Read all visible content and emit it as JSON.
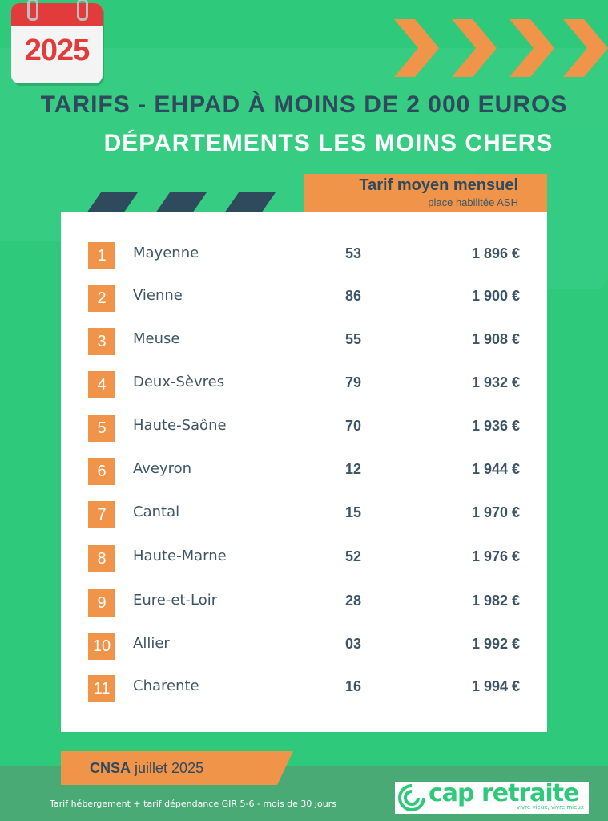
{
  "calendar": {
    "year": "2025"
  },
  "title": "TARIFS - EHPAD À MOINS DE 2 000 EUROS",
  "subtitle": "DÉPARTEMENTS LES MOINS CHERS",
  "header": {
    "title": "Tarif moyen mensuel",
    "subtitle": "place habilitée ASH"
  },
  "rows": [
    {
      "rank": "1",
      "department": "Mayenne",
      "code": "53",
      "price": "1 896 €"
    },
    {
      "rank": "2",
      "department": "Vienne",
      "code": "86",
      "price": "1 900 €"
    },
    {
      "rank": "3",
      "department": "Meuse",
      "code": "55",
      "price": "1 908 €"
    },
    {
      "rank": "4",
      "department": "Deux-Sèvres",
      "code": "79",
      "price": "1 932 €"
    },
    {
      "rank": "5",
      "department": "Haute-Saône",
      "code": "70",
      "price": "1 936 €"
    },
    {
      "rank": "6",
      "department": "Aveyron",
      "code": "12",
      "price": "1 944 €"
    },
    {
      "rank": "7",
      "department": "Cantal",
      "code": "15",
      "price": "1 970 €"
    },
    {
      "rank": "8",
      "department": "Haute-Marne",
      "code": "52",
      "price": "1 976 €"
    },
    {
      "rank": "9",
      "department": "Eure-et-Loir",
      "code": "28",
      "price": "1 982 €"
    },
    {
      "rank": "10",
      "department": "Allier",
      "code": "03",
      "price": "1 992 €"
    },
    {
      "rank": "11",
      "department": "Charente",
      "code": "16",
      "price": "1 994 €"
    }
  ],
  "source": {
    "org": "CNSA",
    "date": "juillet 2025"
  },
  "footnote": "Tarif hébergement + tarif dépendance GIR 5-6 - mois de 30 jours",
  "logo": {
    "name": "cap retraite",
    "tagline": "vivre vieux, vivre mieux"
  },
  "colors": {
    "background": "#2ec97a",
    "accent": "#f0944a",
    "dark_text": "#2f4a5c",
    "calendar_red": "#e23b3b"
  }
}
